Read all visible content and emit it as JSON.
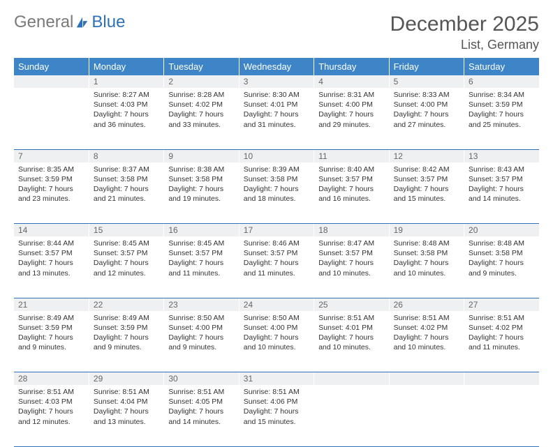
{
  "brand": {
    "word1": "General",
    "word2": "Blue"
  },
  "title": "December 2025",
  "location": "List, Germany",
  "colors": {
    "header_bg": "#3d85c6",
    "header_text": "#ffffff",
    "daynum_bg": "#eef0f2",
    "daynum_text": "#666666",
    "border": "#2f71b8",
    "body_text": "#333333",
    "brand_gray": "#7a7a7a",
    "brand_blue": "#2f71b8"
  },
  "day_headers": [
    "Sunday",
    "Monday",
    "Tuesday",
    "Wednesday",
    "Thursday",
    "Friday",
    "Saturday"
  ],
  "weeks": [
    {
      "nums": [
        "",
        "1",
        "2",
        "3",
        "4",
        "5",
        "6"
      ],
      "cells": [
        [],
        [
          "Sunrise: 8:27 AM",
          "Sunset: 4:03 PM",
          "Daylight: 7 hours",
          "and 36 minutes."
        ],
        [
          "Sunrise: 8:28 AM",
          "Sunset: 4:02 PM",
          "Daylight: 7 hours",
          "and 33 minutes."
        ],
        [
          "Sunrise: 8:30 AM",
          "Sunset: 4:01 PM",
          "Daylight: 7 hours",
          "and 31 minutes."
        ],
        [
          "Sunrise: 8:31 AM",
          "Sunset: 4:00 PM",
          "Daylight: 7 hours",
          "and 29 minutes."
        ],
        [
          "Sunrise: 8:33 AM",
          "Sunset: 4:00 PM",
          "Daylight: 7 hours",
          "and 27 minutes."
        ],
        [
          "Sunrise: 8:34 AM",
          "Sunset: 3:59 PM",
          "Daylight: 7 hours",
          "and 25 minutes."
        ]
      ]
    },
    {
      "nums": [
        "7",
        "8",
        "9",
        "10",
        "11",
        "12",
        "13"
      ],
      "cells": [
        [
          "Sunrise: 8:35 AM",
          "Sunset: 3:59 PM",
          "Daylight: 7 hours",
          "and 23 minutes."
        ],
        [
          "Sunrise: 8:37 AM",
          "Sunset: 3:58 PM",
          "Daylight: 7 hours",
          "and 21 minutes."
        ],
        [
          "Sunrise: 8:38 AM",
          "Sunset: 3:58 PM",
          "Daylight: 7 hours",
          "and 19 minutes."
        ],
        [
          "Sunrise: 8:39 AM",
          "Sunset: 3:58 PM",
          "Daylight: 7 hours",
          "and 18 minutes."
        ],
        [
          "Sunrise: 8:40 AM",
          "Sunset: 3:57 PM",
          "Daylight: 7 hours",
          "and 16 minutes."
        ],
        [
          "Sunrise: 8:42 AM",
          "Sunset: 3:57 PM",
          "Daylight: 7 hours",
          "and 15 minutes."
        ],
        [
          "Sunrise: 8:43 AM",
          "Sunset: 3:57 PM",
          "Daylight: 7 hours",
          "and 14 minutes."
        ]
      ]
    },
    {
      "nums": [
        "14",
        "15",
        "16",
        "17",
        "18",
        "19",
        "20"
      ],
      "cells": [
        [
          "Sunrise: 8:44 AM",
          "Sunset: 3:57 PM",
          "Daylight: 7 hours",
          "and 13 minutes."
        ],
        [
          "Sunrise: 8:45 AM",
          "Sunset: 3:57 PM",
          "Daylight: 7 hours",
          "and 12 minutes."
        ],
        [
          "Sunrise: 8:45 AM",
          "Sunset: 3:57 PM",
          "Daylight: 7 hours",
          "and 11 minutes."
        ],
        [
          "Sunrise: 8:46 AM",
          "Sunset: 3:57 PM",
          "Daylight: 7 hours",
          "and 11 minutes."
        ],
        [
          "Sunrise: 8:47 AM",
          "Sunset: 3:57 PM",
          "Daylight: 7 hours",
          "and 10 minutes."
        ],
        [
          "Sunrise: 8:48 AM",
          "Sunset: 3:58 PM",
          "Daylight: 7 hours",
          "and 10 minutes."
        ],
        [
          "Sunrise: 8:48 AM",
          "Sunset: 3:58 PM",
          "Daylight: 7 hours",
          "and 9 minutes."
        ]
      ]
    },
    {
      "nums": [
        "21",
        "22",
        "23",
        "24",
        "25",
        "26",
        "27"
      ],
      "cells": [
        [
          "Sunrise: 8:49 AM",
          "Sunset: 3:59 PM",
          "Daylight: 7 hours",
          "and 9 minutes."
        ],
        [
          "Sunrise: 8:49 AM",
          "Sunset: 3:59 PM",
          "Daylight: 7 hours",
          "and 9 minutes."
        ],
        [
          "Sunrise: 8:50 AM",
          "Sunset: 4:00 PM",
          "Daylight: 7 hours",
          "and 9 minutes."
        ],
        [
          "Sunrise: 8:50 AM",
          "Sunset: 4:00 PM",
          "Daylight: 7 hours",
          "and 10 minutes."
        ],
        [
          "Sunrise: 8:51 AM",
          "Sunset: 4:01 PM",
          "Daylight: 7 hours",
          "and 10 minutes."
        ],
        [
          "Sunrise: 8:51 AM",
          "Sunset: 4:02 PM",
          "Daylight: 7 hours",
          "and 10 minutes."
        ],
        [
          "Sunrise: 8:51 AM",
          "Sunset: 4:02 PM",
          "Daylight: 7 hours",
          "and 11 minutes."
        ]
      ]
    },
    {
      "nums": [
        "28",
        "29",
        "30",
        "31",
        "",
        "",
        ""
      ],
      "cells": [
        [
          "Sunrise: 8:51 AM",
          "Sunset: 4:03 PM",
          "Daylight: 7 hours",
          "and 12 minutes."
        ],
        [
          "Sunrise: 8:51 AM",
          "Sunset: 4:04 PM",
          "Daylight: 7 hours",
          "and 13 minutes."
        ],
        [
          "Sunrise: 8:51 AM",
          "Sunset: 4:05 PM",
          "Daylight: 7 hours",
          "and 14 minutes."
        ],
        [
          "Sunrise: 8:51 AM",
          "Sunset: 4:06 PM",
          "Daylight: 7 hours",
          "and 15 minutes."
        ],
        [],
        [],
        []
      ]
    }
  ]
}
